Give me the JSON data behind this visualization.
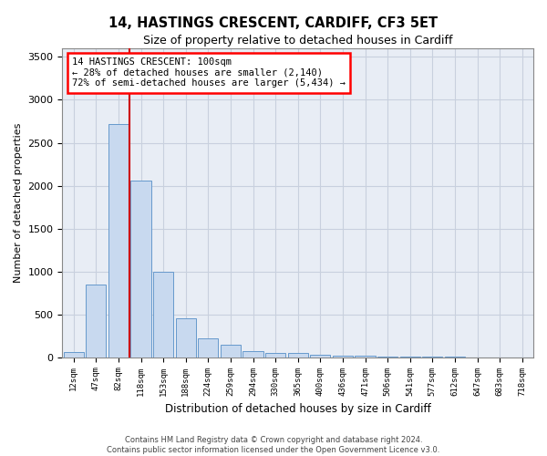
{
  "title1": "14, HASTINGS CRESCENT, CARDIFF, CF3 5ET",
  "title2": "Size of property relative to detached houses in Cardiff",
  "xlabel": "Distribution of detached houses by size in Cardiff",
  "ylabel": "Number of detached properties",
  "annotation_line1": "14 HASTINGS CRESCENT: 100sqm",
  "annotation_line2": "← 28% of detached houses are smaller (2,140)",
  "annotation_line3": "72% of semi-detached houses are larger (5,434) →",
  "footer1": "Contains HM Land Registry data © Crown copyright and database right 2024.",
  "footer2": "Contains public sector information licensed under the Open Government Licence v3.0.",
  "bar_color": "#c8d9ef",
  "bar_edge_color": "#6699cc",
  "grid_color": "#c8d0de",
  "background_color": "#e8edf5",
  "marker_line_color": "#cc0000",
  "categories": [
    "12sqm",
    "47sqm",
    "82sqm",
    "118sqm",
    "153sqm",
    "188sqm",
    "224sqm",
    "259sqm",
    "294sqm",
    "330sqm",
    "365sqm",
    "400sqm",
    "436sqm",
    "471sqm",
    "506sqm",
    "541sqm",
    "577sqm",
    "612sqm",
    "647sqm",
    "683sqm",
    "718sqm"
  ],
  "values": [
    60,
    850,
    2720,
    2060,
    1000,
    450,
    225,
    145,
    70,
    55,
    45,
    30,
    20,
    15,
    10,
    5,
    5,
    3,
    2,
    2,
    1
  ],
  "ylim": [
    0,
    3600
  ],
  "yticks": [
    0,
    500,
    1000,
    1500,
    2000,
    2500,
    3000,
    3500
  ],
  "marker_bin_index": 3
}
